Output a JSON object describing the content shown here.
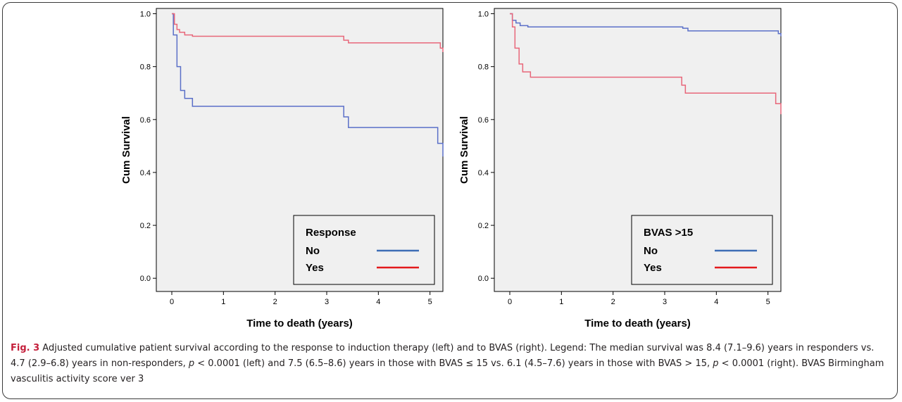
{
  "chart_data": [
    {
      "type": "line",
      "title": "",
      "xlabel": "Time to death (years)",
      "ylabel": "Cum Survival",
      "xlim": [
        -0.3,
        5.25
      ],
      "ylim": [
        -0.05,
        1.02
      ],
      "x_ticks": [
        0,
        1,
        2,
        3,
        4,
        5
      ],
      "y_ticks": [
        0.0,
        0.2,
        0.4,
        0.6,
        0.8,
        1.0
      ],
      "y_tick_labels": [
        "0.0",
        "0.2",
        "0.4",
        "0.6",
        "0.8",
        "1.0"
      ],
      "grid": false,
      "legend": {
        "placement": "bottom-right",
        "title": "Response"
      },
      "series": [
        {
          "name": "No",
          "color": "#5a6fc8",
          "legend_color": "#3d6db5",
          "x": [
            0,
            0.03,
            0.1,
            0.17,
            0.25,
            0.4,
            3.33,
            3.42,
            5.15,
            5.25
          ],
          "y": [
            1.0,
            0.92,
            0.8,
            0.71,
            0.68,
            0.65,
            0.61,
            0.57,
            0.51,
            0.46
          ]
        },
        {
          "name": "Yes",
          "color": "#e8677a",
          "legend_color": "#e31a1c",
          "x": [
            0,
            0.05,
            0.1,
            0.15,
            0.25,
            0.4,
            3.33,
            3.42,
            5.2,
            5.25
          ],
          "y": [
            1.0,
            0.96,
            0.94,
            0.93,
            0.92,
            0.915,
            0.9,
            0.89,
            0.87,
            0.855
          ]
        }
      ]
    },
    {
      "type": "line",
      "title": "",
      "xlabel": "Time to death (years)",
      "ylabel": "Cum Survival",
      "xlim": [
        -0.3,
        5.25
      ],
      "ylim": [
        -0.05,
        1.02
      ],
      "x_ticks": [
        0,
        1,
        2,
        3,
        4,
        5
      ],
      "y_ticks": [
        0.0,
        0.2,
        0.4,
        0.6,
        0.8,
        1.0
      ],
      "y_tick_labels": [
        "0.0",
        "0.2",
        "0.4",
        "0.6",
        "0.8",
        "1.0"
      ],
      "grid": false,
      "legend": {
        "placement": "bottom-right",
        "title": "BVAS >15"
      },
      "series": [
        {
          "name": "No",
          "color": "#5a6fc8",
          "legend_color": "#3d6db5",
          "x": [
            0,
            0.05,
            0.12,
            0.2,
            0.35,
            3.35,
            3.45,
            5.2,
            5.25
          ],
          "y": [
            1.0,
            0.975,
            0.965,
            0.955,
            0.95,
            0.945,
            0.935,
            0.925,
            0.915
          ]
        },
        {
          "name": "Yes",
          "color": "#e8677a",
          "legend_color": "#e31a1c",
          "x": [
            0,
            0.05,
            0.1,
            0.18,
            0.25,
            0.4,
            3.33,
            3.4,
            5.15,
            5.25
          ],
          "y": [
            1.0,
            0.95,
            0.87,
            0.81,
            0.78,
            0.76,
            0.73,
            0.7,
            0.66,
            0.62
          ]
        }
      ]
    }
  ],
  "caption": {
    "label": "Fig. 3",
    "text_1": " Adjusted cumulative patient survival according to the response to induction therapy (left) and to BVAS (right). Legend: The median survival was 8.4 (7.1–9.6) years in responders vs. 4.7 (2.9–6.8) years in non-responders, ",
    "p_1": "p",
    "text_2": " < 0.0001 (left) and 7.5 (6.5–8.6) years in those with BVAS ≤ 15 vs. 6.1 (4.5–7.6) years in those with BVAS > 15, ",
    "p_2": "p",
    "text_3": " < 0.0001 (right). BVAS Birmingham vasculitis activity score ver 3"
  }
}
